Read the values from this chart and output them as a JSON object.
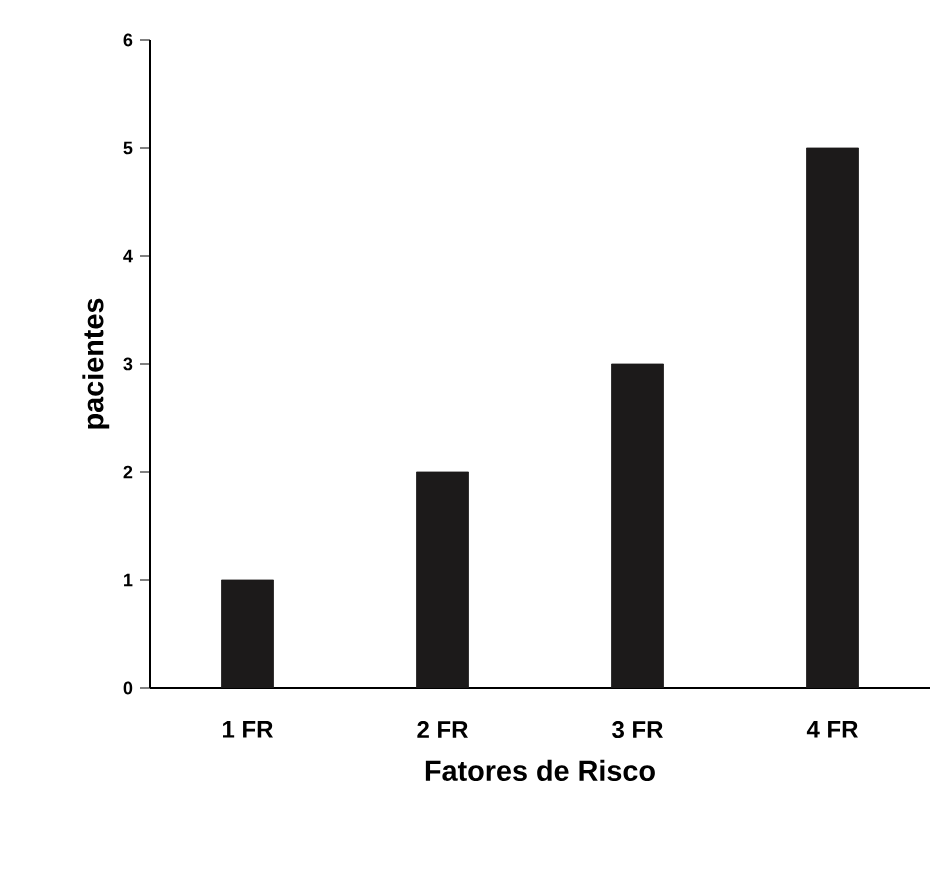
{
  "chart_data": {
    "type": "bar",
    "xlabel": "Fatores de Risco",
    "ylabel": "pacientes",
    "categories": [
      "1 FR",
      "2 FR",
      "3 FR",
      "4 FR"
    ],
    "values": [
      1,
      2,
      3,
      5
    ],
    "color": "#1c1a1a",
    "ylim": [
      0,
      6
    ],
    "yticks": [
      0,
      1,
      2,
      3,
      4,
      5,
      6
    ],
    "grid": false
  }
}
